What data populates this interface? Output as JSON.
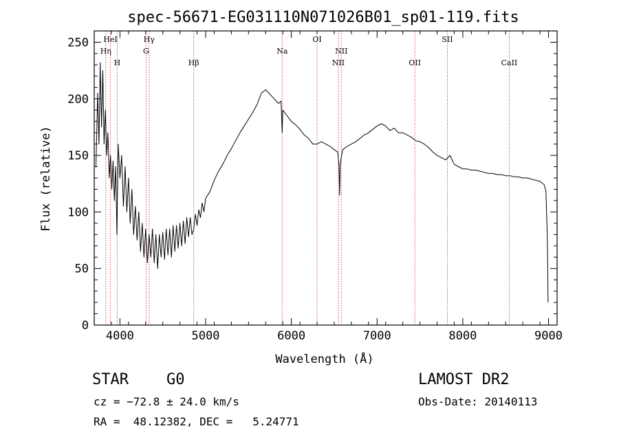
{
  "title": "spec-56671-EG031110N071026B01_sp01-119.fits",
  "info": {
    "class_label": "STAR",
    "subclass_label": "G0",
    "survey": "LAMOST DR2",
    "cz": "cz = −72.8 ± 24.0 km/s",
    "obs_date": "Obs-Date: 20140113",
    "coords": "RA =  48.12382, DEC =   5.24771"
  },
  "chart_data": {
    "type": "line",
    "title": "spec-56671-EG031110N071026B01_sp01-119.fits",
    "xlabel": "Wavelength (Å)",
    "ylabel": "Flux (relative)",
    "xlim": [
      3700,
      9100
    ],
    "ylim": [
      0,
      260
    ],
    "xticks": [
      4000,
      5000,
      6000,
      7000,
      8000,
      9000
    ],
    "yticks": [
      0,
      50,
      100,
      150,
      200,
      250
    ],
    "line_color": "#000000",
    "marker_color": "#cc3333",
    "series": [
      {
        "points": [
          [
            3720,
            140
          ],
          [
            3740,
            205
          ],
          [
            3755,
            160
          ],
          [
            3770,
            232
          ],
          [
            3785,
            175
          ],
          [
            3800,
            225
          ],
          [
            3815,
            160
          ],
          [
            3830,
            190
          ],
          [
            3845,
            150
          ],
          [
            3860,
            170
          ],
          [
            3875,
            130
          ],
          [
            3890,
            150
          ],
          [
            3905,
            120
          ],
          [
            3920,
            145
          ],
          [
            3935,
            110
          ],
          [
            3950,
            140
          ],
          [
            3965,
            80
          ],
          [
            3980,
            160
          ],
          [
            4000,
            130
          ],
          [
            4020,
            150
          ],
          [
            4040,
            105
          ],
          [
            4060,
            140
          ],
          [
            4080,
            100
          ],
          [
            4100,
            130
          ],
          [
            4120,
            90
          ],
          [
            4140,
            120
          ],
          [
            4160,
            80
          ],
          [
            4180,
            105
          ],
          [
            4200,
            75
          ],
          [
            4220,
            100
          ],
          [
            4240,
            65
          ],
          [
            4260,
            90
          ],
          [
            4280,
            60
          ],
          [
            4300,
            85
          ],
          [
            4320,
            55
          ],
          [
            4340,
            80
          ],
          [
            4360,
            60
          ],
          [
            4380,
            85
          ],
          [
            4400,
            55
          ],
          [
            4420,
            80
          ],
          [
            4440,
            50
          ],
          [
            4460,
            80
          ],
          [
            4480,
            60
          ],
          [
            4500,
            82
          ],
          [
            4520,
            58
          ],
          [
            4540,
            85
          ],
          [
            4560,
            62
          ],
          [
            4580,
            85
          ],
          [
            4600,
            60
          ],
          [
            4620,
            88
          ],
          [
            4640,
            65
          ],
          [
            4660,
            88
          ],
          [
            4680,
            68
          ],
          [
            4700,
            90
          ],
          [
            4720,
            70
          ],
          [
            4740,
            92
          ],
          [
            4760,
            72
          ],
          [
            4780,
            95
          ],
          [
            4800,
            78
          ],
          [
            4820,
            95
          ],
          [
            4840,
            80
          ],
          [
            4861,
            85
          ],
          [
            4880,
            98
          ],
          [
            4900,
            88
          ],
          [
            4920,
            102
          ],
          [
            4940,
            95
          ],
          [
            4960,
            108
          ],
          [
            4980,
            100
          ],
          [
            5000,
            112
          ],
          [
            5050,
            118
          ],
          [
            5100,
            128
          ],
          [
            5150,
            136
          ],
          [
            5200,
            142
          ],
          [
            5250,
            150
          ],
          [
            5300,
            156
          ],
          [
            5350,
            163
          ],
          [
            5400,
            170
          ],
          [
            5450,
            176
          ],
          [
            5500,
            182
          ],
          [
            5550,
            188
          ],
          [
            5600,
            195
          ],
          [
            5650,
            205
          ],
          [
            5700,
            208
          ],
          [
            5750,
            204
          ],
          [
            5800,
            200
          ],
          [
            5850,
            196
          ],
          [
            5880,
            198
          ],
          [
            5893,
            170
          ],
          [
            5900,
            190
          ],
          [
            5950,
            185
          ],
          [
            6000,
            180
          ],
          [
            6050,
            177
          ],
          [
            6100,
            173
          ],
          [
            6150,
            168
          ],
          [
            6200,
            165
          ],
          [
            6250,
            160
          ],
          [
            6300,
            160
          ],
          [
            6350,
            162
          ],
          [
            6400,
            160
          ],
          [
            6450,
            158
          ],
          [
            6500,
            155
          ],
          [
            6540,
            153
          ],
          [
            6555,
            142
          ],
          [
            6563,
            115
          ],
          [
            6570,
            142
          ],
          [
            6585,
            150
          ],
          [
            6600,
            155
          ],
          [
            6650,
            158
          ],
          [
            6700,
            160
          ],
          [
            6750,
            162
          ],
          [
            6800,
            165
          ],
          [
            6850,
            168
          ],
          [
            6900,
            170
          ],
          [
            6950,
            173
          ],
          [
            7000,
            176
          ],
          [
            7050,
            178
          ],
          [
            7100,
            176
          ],
          [
            7150,
            172
          ],
          [
            7200,
            174
          ],
          [
            7250,
            170
          ],
          [
            7300,
            170
          ],
          [
            7350,
            168
          ],
          [
            7400,
            166
          ],
          [
            7450,
            163
          ],
          [
            7500,
            162
          ],
          [
            7550,
            160
          ],
          [
            7600,
            157
          ],
          [
            7650,
            153
          ],
          [
            7700,
            150
          ],
          [
            7750,
            148
          ],
          [
            7800,
            146
          ],
          [
            7850,
            150
          ],
          [
            7900,
            142
          ],
          [
            7950,
            140
          ],
          [
            8000,
            138
          ],
          [
            8050,
            138
          ],
          [
            8100,
            137
          ],
          [
            8150,
            137
          ],
          [
            8200,
            136
          ],
          [
            8250,
            135
          ],
          [
            8300,
            134
          ],
          [
            8350,
            134
          ],
          [
            8400,
            133
          ],
          [
            8450,
            133
          ],
          [
            8500,
            132
          ],
          [
            8550,
            132
          ],
          [
            8600,
            131
          ],
          [
            8650,
            131
          ],
          [
            8700,
            130
          ],
          [
            8750,
            130
          ],
          [
            8800,
            129
          ],
          [
            8850,
            128
          ],
          [
            8900,
            127
          ],
          [
            8950,
            124
          ],
          [
            8970,
            118
          ],
          [
            8985,
            80
          ],
          [
            8995,
            20
          ]
        ]
      }
    ],
    "lines": [
      {
        "name": "HeI",
        "wl": 3889,
        "row": 0
      },
      {
        "name": "Hη",
        "wl": 3835,
        "row": 1
      },
      {
        "name": "H",
        "wl": 3968,
        "row": 2
      },
      {
        "name": "Hγ",
        "wl": 4340,
        "row": 0
      },
      {
        "name": "G",
        "wl": 4305,
        "row": 1
      },
      {
        "name": "Hβ",
        "wl": 4861,
        "row": 2
      },
      {
        "name": "Na",
        "wl": 5893,
        "row": 1
      },
      {
        "name": "OI",
        "wl": 6300,
        "row": 0
      },
      {
        "name": "NII",
        "wl": 6583,
        "row": 1
      },
      {
        "name": "NII",
        "wl": 6548,
        "row": 2
      },
      {
        "name": "SII",
        "wl": 7820,
        "row": 0
      },
      {
        "name": "OII",
        "wl": 7440,
        "row": 2
      },
      {
        "name": "CaII",
        "wl": 8542,
        "row": 2
      }
    ]
  }
}
